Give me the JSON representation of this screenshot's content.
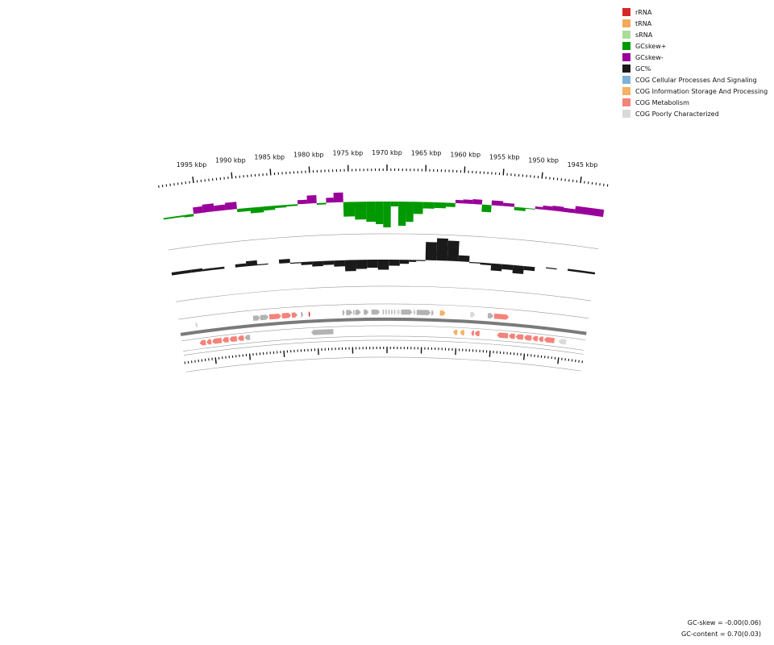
{
  "legend": [
    {
      "label": "rRNA",
      "color": "#d62728"
    },
    {
      "label": "tRNA",
      "color": "#f4a95a"
    },
    {
      "label": "sRNA",
      "color": "#a8dd9a"
    },
    {
      "label": "GCskew+",
      "color": "#009900"
    },
    {
      "label": "GCskew-",
      "color": "#990099"
    },
    {
      "label": "GC%",
      "color": "#1a1a1a"
    },
    {
      "label": "COG Cellular Processes And Signaling",
      "color": "#7fb2d8"
    },
    {
      "label": "COG Information Storage And Processing",
      "color": "#f6b064"
    },
    {
      "label": "COG Metabolism",
      "color": "#f4837a"
    },
    {
      "label": "COG Poorly Characterized",
      "color": "#d9d9d9"
    }
  ],
  "axis": {
    "tick_labels": [
      "1995 kbp",
      "1990 kbp",
      "1985 kbp",
      "1980 kbp",
      "1975 kbp",
      "1970 kbp",
      "1965 kbp",
      "1960 kbp",
      "1955 kbp",
      "1950 kbp",
      "1945 kbp"
    ],
    "label_kbp": [
      1995,
      1990,
      1985,
      1980,
      1975,
      1970,
      1965,
      1960,
      1955,
      1950,
      1945
    ]
  },
  "stats": {
    "gc_skew": "GC-skew = -0.00(0.06)",
    "gc_content": "GC-content = 0.70(0.03)"
  },
  "colors": {
    "skew_pos": "#009900",
    "skew_neg": "#990099",
    "gc": "#1a1a1a",
    "gene_gray": "#b3b3b3",
    "gene_light": "#d9d9d9",
    "gene_red": "#f4837a",
    "gene_orange": "#f6b064",
    "rrna": "#d62728"
  },
  "chart_data": {
    "type": "circular-genome-map",
    "region_kbp": [
      1997,
      1944
    ],
    "gc_skew": {
      "kbp": [
        1997.5,
        1996,
        1995,
        1993.5,
        1992,
        1990.5,
        1989,
        1987,
        1985.5,
        1984,
        1982.5,
        1981,
        1980,
        1978.5,
        1977.5,
        1976.5,
        1975,
        1973.5,
        1972,
        1971,
        1970,
        1969,
        1968,
        1967,
        1966,
        1964.5,
        1963,
        1961.5,
        1960.5,
        1959.5,
        1958,
        1957,
        1955.5,
        1954,
        1952.5,
        1951,
        1950,
        1949,
        1947.5,
        1946,
        1944.5
      ],
      "value": [
        0.02,
        0.03,
        -0.08,
        -0.1,
        -0.07,
        -0.09,
        0.04,
        0.07,
        0.05,
        0.03,
        0.02,
        -0.05,
        -0.1,
        0.02,
        -0.06,
        -0.12,
        0.18,
        0.22,
        0.25,
        0.28,
        0.32,
        0.06,
        0.3,
        0.25,
        0.15,
        0.08,
        0.07,
        0.05,
        -0.04,
        -0.05,
        -0.06,
        0.09,
        -0.06,
        -0.04,
        0.04,
        0.01,
        -0.03,
        -0.05,
        -0.06,
        -0.05,
        -0.09
      ]
    },
    "gc_content": {
      "kbp": [
        1997.5,
        1996,
        1994.5,
        1993,
        1991.5,
        1990,
        1988.5,
        1987,
        1985.5,
        1984,
        1982.5,
        1981,
        1979.5,
        1978,
        1976.5,
        1975,
        1973.5,
        1972,
        1970.5,
        1969,
        1967.5,
        1966.5,
        1965.5,
        1964,
        1962.5,
        1961,
        1959.5,
        1958,
        1956.5,
        1955,
        1953.5,
        1952,
        1950.5,
        1949,
        1947.5,
        1946,
        1944.5
      ],
      "value": [
        0.73,
        0.73,
        0.72,
        0.72,
        0.7,
        0.73,
        0.75,
        0.71,
        0.7,
        0.74,
        0.69,
        0.67,
        0.65,
        0.66,
        0.64,
        0.59,
        0.61,
        0.62,
        0.6,
        0.64,
        0.66,
        0.68,
        0.69,
        0.88,
        0.92,
        0.9,
        0.76,
        0.69,
        0.68,
        0.63,
        0.65,
        0.62,
        0.66,
        0.7,
        0.71,
        0.7,
        0.72
      ]
    },
    "genes_plus": [
      {
        "start": 1997.2,
        "end": 1996.9,
        "cog": "Poorly Characterized"
      },
      {
        "start": 1989.0,
        "end": 1988.0,
        "cog": "Unassigned"
      },
      {
        "start": 1988.0,
        "end": 1986.8,
        "cog": "Unassigned"
      },
      {
        "start": 1986.7,
        "end": 1985.0,
        "cog": "Metabolism"
      },
      {
        "start": 1984.9,
        "end": 1983.6,
        "cog": "Metabolism"
      },
      {
        "start": 1983.5,
        "end": 1982.7,
        "cog": "Metabolism"
      },
      {
        "start": 1982.2,
        "end": 1981.9,
        "cog": "Unassigned"
      },
      {
        "start": 1981.1,
        "end": 1980.9,
        "cog": "rRNA"
      },
      {
        "start": 1976.3,
        "end": 1976.0,
        "cog": "Unassigned"
      },
      {
        "start": 1975.8,
        "end": 1974.9,
        "cog": "Unassigned"
      },
      {
        "start": 1974.8,
        "end": 1974.6,
        "cog": "Unassigned"
      },
      {
        "start": 1974.5,
        "end": 1973.7,
        "cog": "Unassigned"
      },
      {
        "start": 1973.3,
        "end": 1972.6,
        "cog": "Unassigned"
      },
      {
        "start": 1972.2,
        "end": 1971.0,
        "cog": "Unassigned"
      },
      {
        "start": 1970.6,
        "end": 1970.4,
        "cog": "Unassigned"
      },
      {
        "start": 1970.2,
        "end": 1970.0,
        "cog": "Unassigned"
      },
      {
        "start": 1969.8,
        "end": 1969.6,
        "cog": "Unassigned"
      },
      {
        "start": 1969.4,
        "end": 1969.2,
        "cog": "Unassigned"
      },
      {
        "start": 1969.0,
        "end": 1968.8,
        "cog": "Unassigned"
      },
      {
        "start": 1968.6,
        "end": 1968.1,
        "cog": "Poorly Characterized"
      },
      {
        "start": 1968.0,
        "end": 1966.4,
        "cog": "Unassigned"
      },
      {
        "start": 1966.2,
        "end": 1966.0,
        "cog": "Unassigned"
      },
      {
        "start": 1965.8,
        "end": 1963.8,
        "cog": "Unassigned"
      },
      {
        "start": 1963.7,
        "end": 1963.4,
        "cog": "Unassigned"
      },
      {
        "start": 1962.5,
        "end": 1961.7,
        "cog": "Information Storage And Processing"
      },
      {
        "start": 1958.2,
        "end": 1957.5,
        "cog": "Poorly Characterized"
      },
      {
        "start": 1955.7,
        "end": 1954.9,
        "cog": "Unassigned"
      },
      {
        "start": 1954.8,
        "end": 1952.7,
        "cog": "Metabolism"
      }
    ],
    "genes_minus": [
      {
        "start": 1997.0,
        "end": 1996.1,
        "cog": "Metabolism"
      },
      {
        "start": 1996.0,
        "end": 1995.3,
        "cog": "Metabolism"
      },
      {
        "start": 1995.2,
        "end": 1993.8,
        "cog": "Metabolism"
      },
      {
        "start": 1993.7,
        "end": 1992.8,
        "cog": "Metabolism"
      },
      {
        "start": 1992.7,
        "end": 1991.6,
        "cog": "Metabolism"
      },
      {
        "start": 1991.5,
        "end": 1990.6,
        "cog": "Metabolism"
      },
      {
        "start": 1990.5,
        "end": 1989.7,
        "cog": "Unassigned"
      },
      {
        "start": 1980.9,
        "end": 1977.7,
        "cog": "Unassigned"
      },
      {
        "start": 1960.5,
        "end": 1959.9,
        "cog": "Information Storage And Processing"
      },
      {
        "start": 1959.5,
        "end": 1958.9,
        "cog": "Information Storage And Processing"
      },
      {
        "start": 1957.9,
        "end": 1957.5,
        "cog": "Metabolism"
      },
      {
        "start": 1957.4,
        "end": 1956.7,
        "cog": "Metabolism"
      },
      {
        "start": 1954.2,
        "end": 1952.6,
        "cog": "Metabolism"
      },
      {
        "start": 1952.5,
        "end": 1951.6,
        "cog": "Metabolism"
      },
      {
        "start": 1951.5,
        "end": 1950.4,
        "cog": "Metabolism"
      },
      {
        "start": 1950.3,
        "end": 1949.2,
        "cog": "Metabolism"
      },
      {
        "start": 1949.1,
        "end": 1948.3,
        "cog": "Metabolism"
      },
      {
        "start": 1948.2,
        "end": 1947.5,
        "cog": "Metabolism"
      },
      {
        "start": 1947.4,
        "end": 1945.9,
        "cog": "Metabolism"
      },
      {
        "start": 1945.3,
        "end": 1944.2,
        "cog": "Poorly Characterized"
      }
    ]
  }
}
